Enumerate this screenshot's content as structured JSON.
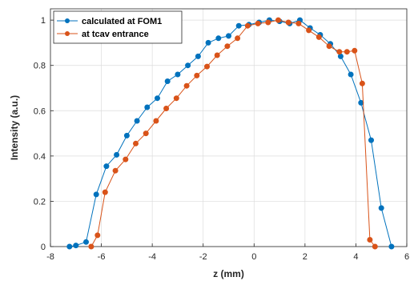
{
  "chart_data": {
    "type": "line",
    "xlabel": "z (mm)",
    "ylabel": "Intensity (a.u.)",
    "xlim": [
      -8,
      6
    ],
    "ylim": [
      0,
      1.05
    ],
    "x_ticks": [
      -8,
      -6,
      -4,
      -2,
      0,
      2,
      4,
      6
    ],
    "y_ticks": [
      0,
      0.2,
      0.4,
      0.6,
      0.8,
      1
    ],
    "x_tick_labels": [
      "-8",
      "-6",
      "-4",
      "-2",
      "0",
      "2",
      "4",
      "6"
    ],
    "y_tick_labels": [
      "0",
      "0.2",
      "0.4",
      "0.6",
      "0.8",
      "1"
    ],
    "grid": true,
    "legend_position": "top-left",
    "series": [
      {
        "name": "calculated at FOM1",
        "color": "#0072BD",
        "x": [
          -7.25,
          -7.0,
          -6.6,
          -6.2,
          -5.8,
          -5.4,
          -5.0,
          -4.6,
          -4.2,
          -3.8,
          -3.4,
          -3.0,
          -2.6,
          -2.2,
          -1.8,
          -1.4,
          -1.0,
          -0.6,
          -0.2,
          0.2,
          0.6,
          1.0,
          1.4,
          1.8,
          2.2,
          2.6,
          3.0,
          3.4,
          3.8,
          4.2,
          4.6,
          5.0,
          5.4
        ],
        "y": [
          0.0,
          0.005,
          0.02,
          0.23,
          0.355,
          0.405,
          0.49,
          0.555,
          0.615,
          0.655,
          0.73,
          0.76,
          0.8,
          0.84,
          0.9,
          0.92,
          0.93,
          0.975,
          0.98,
          0.99,
          1.0,
          0.995,
          0.985,
          1.0,
          0.965,
          0.935,
          0.895,
          0.84,
          0.76,
          0.635,
          0.47,
          0.17,
          0.0
        ]
      },
      {
        "name": "at tcav entrance",
        "color": "#D95319",
        "x": [
          -6.4,
          -6.15,
          -5.85,
          -5.45,
          -5.05,
          -4.65,
          -4.25,
          -3.85,
          -3.45,
          -3.05,
          -2.65,
          -2.25,
          -1.85,
          -1.45,
          -1.05,
          -0.65,
          -0.25,
          0.15,
          0.55,
          0.95,
          1.35,
          1.75,
          2.15,
          2.55,
          2.95,
          3.35,
          3.65,
          3.95,
          4.25,
          4.55,
          4.75
        ],
        "y": [
          0.0,
          0.05,
          0.24,
          0.335,
          0.385,
          0.455,
          0.5,
          0.555,
          0.61,
          0.655,
          0.71,
          0.755,
          0.795,
          0.845,
          0.885,
          0.92,
          0.975,
          0.985,
          0.99,
          1.0,
          0.99,
          0.985,
          0.955,
          0.925,
          0.885,
          0.86,
          0.86,
          0.865,
          0.72,
          0.03,
          0.0
        ]
      }
    ]
  }
}
